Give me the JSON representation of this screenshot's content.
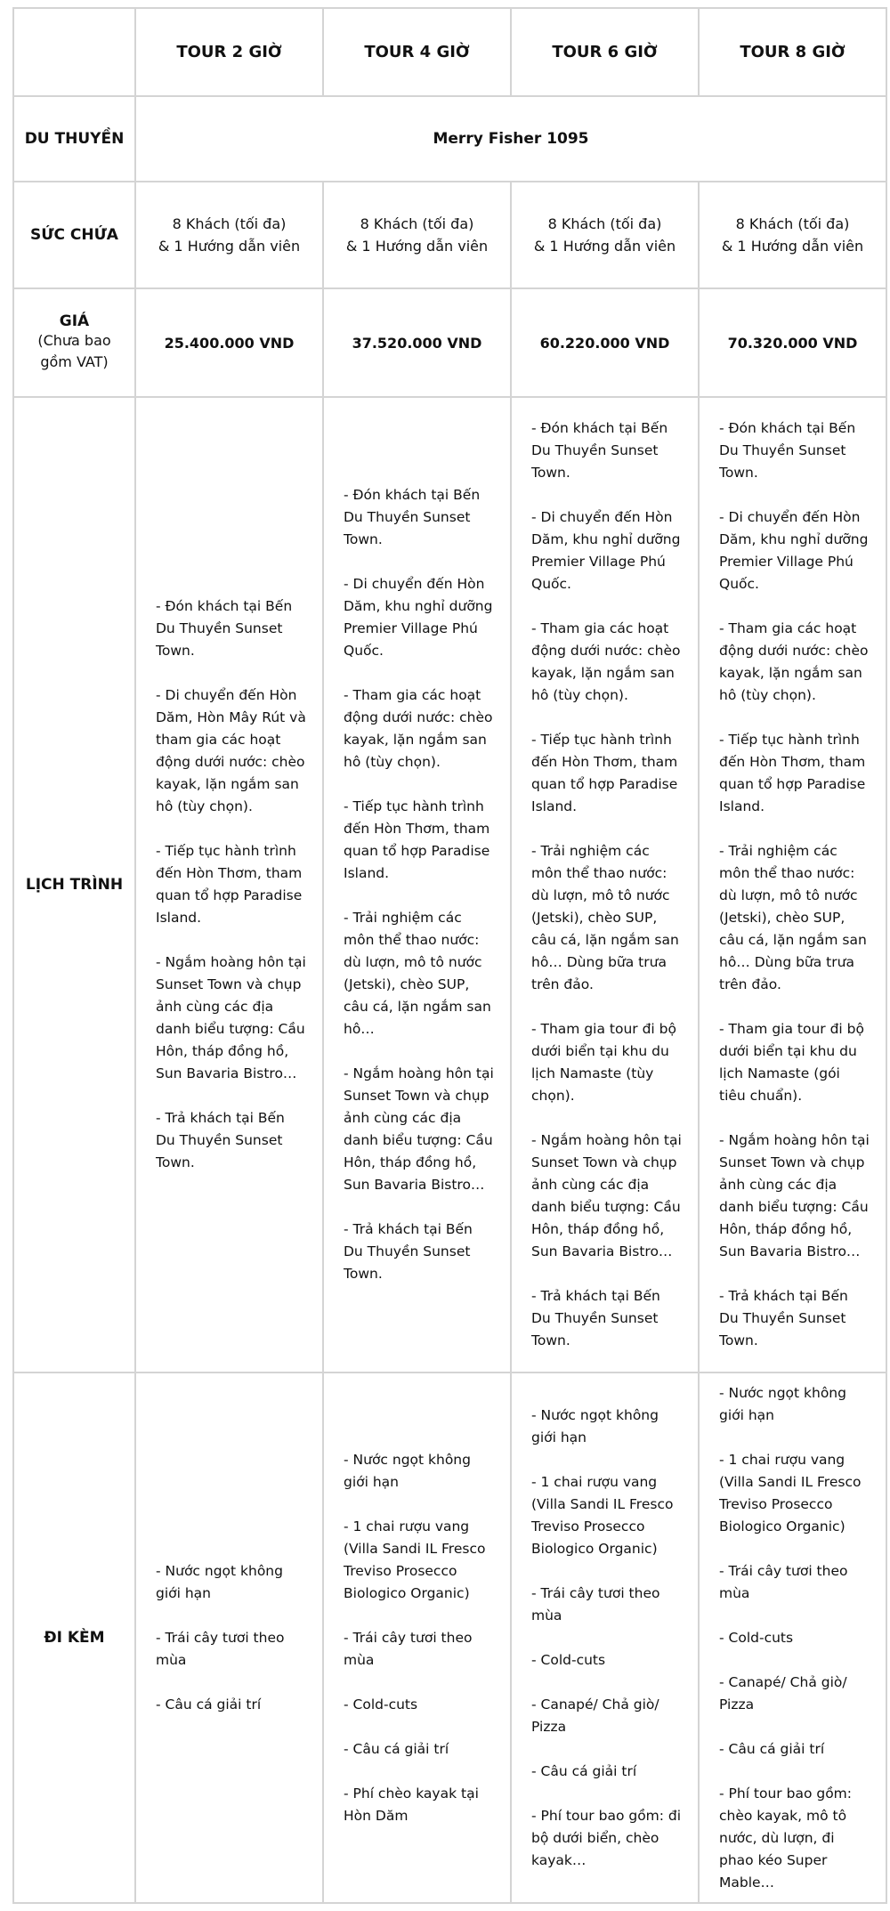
{
  "header": {
    "corner": "",
    "tours": [
      "TOUR 2 GIỜ",
      "TOUR 4 GIỜ",
      "TOUR 6 GIỜ",
      "TOUR 8 GIỜ"
    ]
  },
  "yacht": {
    "label": "DU THUYỀN",
    "value": "Merry Fisher 1095"
  },
  "capacity": {
    "label": "SỨC CHỨA",
    "line1": "8 Khách (tối đa)",
    "line2": "& 1 Hướng dẫn viên"
  },
  "price": {
    "label": "GIÁ",
    "sublabel": "(Chưa bao gồm VAT)",
    "values": [
      "25.400.000 VND",
      "37.520.000 VND",
      "60.220.000 VND",
      "70.320.000 VND"
    ]
  },
  "schedule": {
    "label": "LỊCH TRÌNH",
    "cols": [
      [
        "- Đón khách tại Bến Du Thuyền Sunset Town.",
        "- Di chuyển đến Hòn Dăm, Hòn Mây Rút và tham gia các hoạt động dưới nước: chèo kayak, lặn ngắm san hô (tùy chọn).",
        "- Tiếp tục hành trình đến Hòn Thơm, tham quan tổ hợp Paradise Island.",
        "- Ngắm hoàng hôn tại Sunset Town và chụp ảnh cùng các địa danh biểu tượng: Cầu Hôn, tháp đồng hồ, Sun Bavaria Bistro…",
        "- Trả khách tại Bến Du Thuyền Sunset Town."
      ],
      [
        "- Đón khách tại Bến Du Thuyền Sunset Town.",
        "- Di chuyển đến Hòn Dăm, khu nghỉ dưỡng Premier Village Phú Quốc.",
        "- Tham gia các hoạt động dưới nước: chèo kayak, lặn ngắm san hô (tùy chọn).",
        "- Tiếp tục hành trình đến Hòn Thơm, tham quan tổ hợp Paradise Island.",
        "- Trải nghiệm các môn thể thao nước: dù lượn, mô tô nước (Jetski), chèo SUP, câu cá, lặn ngắm san hô…",
        "- Ngắm hoàng hôn tại Sunset Town và chụp ảnh cùng các địa danh biểu tượng: Cầu Hôn, tháp đồng hồ, Sun Bavaria Bistro…",
        "- Trả khách tại Bến Du Thuyền Sunset Town."
      ],
      [
        "- Đón khách tại Bến Du Thuyền Sunset Town.",
        "- Di chuyển đến Hòn Dăm, khu nghỉ dưỡng Premier Village Phú Quốc.",
        "- Tham gia các hoạt động dưới nước: chèo kayak, lặn ngắm san hô (tùy chọn).",
        "- Tiếp tục hành trình đến Hòn Thơm, tham quan tổ hợp Paradise Island.",
        "- Trải nghiệm các môn thể thao nước: dù lượn, mô tô nước (Jetski), chèo SUP, câu cá, lặn ngắm san hô… Dùng bữa trưa trên đảo.",
        "- Tham gia tour đi bộ dưới biển tại khu du lịch Namaste (tùy chọn).",
        "- Ngắm hoàng hôn tại Sunset Town và chụp ảnh cùng các địa danh biểu tượng: Cầu Hôn, tháp đồng hồ, Sun Bavaria Bistro…",
        "- Trả khách tại Bến Du Thuyền Sunset Town."
      ],
      [
        "- Đón khách tại Bến Du Thuyền Sunset Town.",
        "- Di chuyển đến Hòn Dăm, khu nghỉ dưỡng Premier Village Phú Quốc.",
        "- Tham gia các hoạt động dưới nước: chèo kayak, lặn ngắm san hô (tùy chọn).",
        "- Tiếp tục hành trình đến Hòn Thơm, tham quan tổ hợp Paradise Island.",
        "- Trải nghiệm các môn thể thao nước: dù lượn, mô tô nước (Jetski), chèo SUP, câu cá, lặn ngắm san hô… Dùng bữa trưa trên đảo.",
        "- Tham gia tour đi bộ dưới biển tại khu du lịch Namaste (gói tiêu chuẩn).",
        "- Ngắm hoàng hôn tại Sunset Town và chụp ảnh cùng các địa danh biểu tượng: Cầu Hôn, tháp đồng hồ, Sun Bavaria Bistro…",
        "- Trả khách tại Bến Du Thuyền Sunset Town."
      ]
    ]
  },
  "included": {
    "label": "ĐI KÈM",
    "cols": [
      [
        "- Nước ngọt không giới hạn",
        "- Trái cây tươi theo mùa",
        "- Câu cá giải trí"
      ],
      [
        "- Nước ngọt không giới hạn",
        "- 1 chai rượu vang (Villa Sandi IL Fresco Treviso Prosecco Biologico Organic)",
        "- Trái cây tươi theo mùa",
        "- Cold-cuts",
        "- Câu cá giải trí",
        "- Phí chèo kayak tại Hòn Dăm"
      ],
      [
        "- Nước ngọt không giới hạn",
        "- 1 chai rượu vang (Villa Sandi IL Fresco Treviso Prosecco Biologico Organic)",
        "- Trái cây tươi theo mùa",
        "- Cold-cuts",
        "- Canapé/ Chả giò/ Pizza",
        "- Câu cá giải trí",
        "- Phí tour bao gồm: đi bộ dưới biển, chèo kayak…"
      ],
      [
        "- Nước ngọt không giới hạn",
        "- 1 chai rượu vang (Villa Sandi IL Fresco Treviso Prosecco Biologico Organic)",
        "- Trái cây tươi theo mùa",
        "- Cold-cuts",
        "- Canapé/ Chả giò/ Pizza",
        "- Câu cá giải trí",
        "- Phí tour bao gồm: chèo kayak, mô tô nước, dù lượn, đi phao kéo Super Mable…"
      ]
    ]
  }
}
